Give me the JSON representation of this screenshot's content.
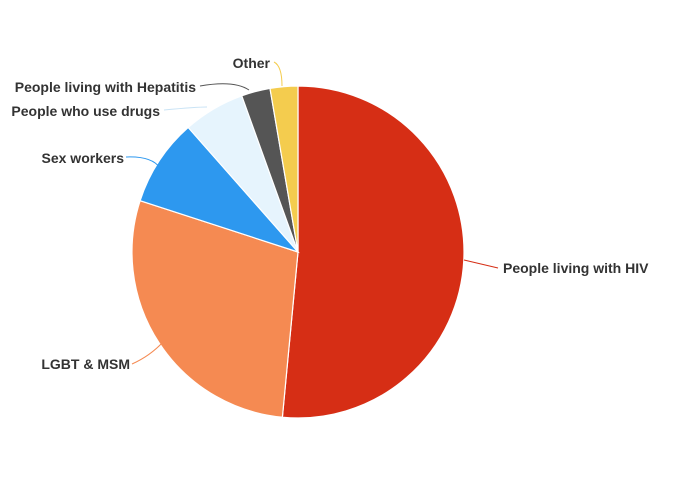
{
  "chart_data": {
    "type": "pie",
    "title": "",
    "legend": "none",
    "start": "top, clockwise",
    "slices": [
      {
        "label": "People living with HIV",
        "value": 51.5,
        "color": "#d62e15"
      },
      {
        "label": "LGBT & MSM",
        "value": 28.5,
        "color": "#f58a52"
      },
      {
        "label": "Sex workers",
        "value": 8.5,
        "color": "#2d98ef"
      },
      {
        "label": "People who use drugs",
        "value": 6.0,
        "color": "#e6f4fd"
      },
      {
        "label": "People living with Hepatitis",
        "value": 2.8,
        "color": "#555555"
      },
      {
        "label": "Other",
        "value": 2.7,
        "color": "#f4cc4e"
      }
    ]
  }
}
